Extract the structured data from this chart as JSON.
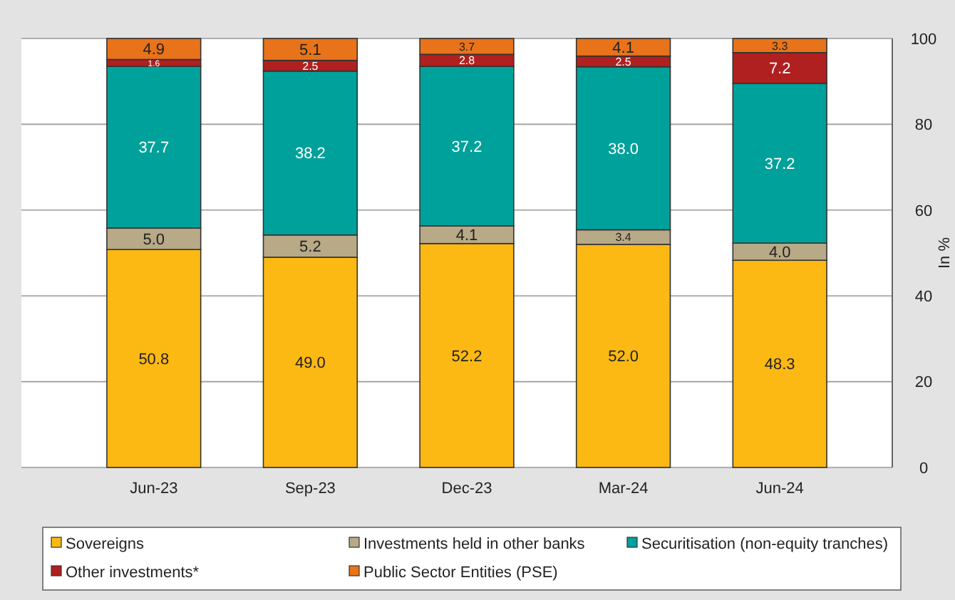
{
  "chart_data": {
    "type": "bar",
    "stacked": true,
    "categories": [
      "Jun-23",
      "Sep-23",
      "Dec-23",
      "Mar-24",
      "Jun-24"
    ],
    "ylabel": "In %",
    "ylim": [
      0,
      100
    ],
    "yticks": [
      0,
      20,
      40,
      60,
      80,
      100
    ],
    "grid": "y",
    "legend": "bottom",
    "series": [
      {
        "name": "Sovereigns",
        "color": "#fdb913",
        "values": [
          50.8,
          49.0,
          52.2,
          52.0,
          48.3
        ],
        "value_labels": [
          "50.8",
          "49.0",
          "52.2",
          "52.0",
          "48.3"
        ]
      },
      {
        "name": "Investments held in other banks",
        "color": "#b8a987",
        "values": [
          5.0,
          5.2,
          4.1,
          3.4,
          4.0
        ],
        "value_labels": [
          "5.0",
          "5.2",
          "4.1",
          "3.4",
          "4.0"
        ]
      },
      {
        "name": "Securitisation (non-equity tranches)",
        "color": "#00a19a",
        "values": [
          37.7,
          38.2,
          37.2,
          38.0,
          37.2
        ],
        "value_labels": [
          "37.7",
          "38.2",
          "37.2",
          "38.0",
          "37.2"
        ]
      },
      {
        "name": "Other investments*",
        "color": "#b0201f",
        "values": [
          1.6,
          2.5,
          2.8,
          2.5,
          7.2
        ],
        "value_labels": [
          "1.6",
          "2.5",
          "2.8",
          "2.5",
          "7.2"
        ]
      },
      {
        "name": "Public Sector Entities (PSE)",
        "color": "#e8731a",
        "values": [
          4.9,
          5.1,
          3.7,
          4.1,
          3.3
        ],
        "value_labels": [
          "4.9",
          "5.1",
          "3.7",
          "4.1",
          "3.3"
        ]
      }
    ]
  }
}
